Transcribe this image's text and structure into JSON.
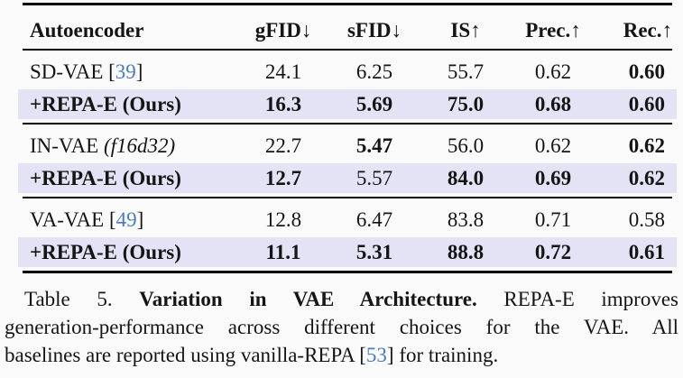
{
  "page": {
    "background": "#fafafa",
    "text_color": "#151515",
    "highlight_color": "#e4e3f5",
    "citation_color": "#4a7cba"
  },
  "table": {
    "columns": [
      "Autoencoder",
      "gFID↓",
      "sFID↓",
      "IS↑",
      "Prec.↑",
      "Rec.↑"
    ],
    "sections": [
      {
        "rows": [
          {
            "highlight": false,
            "label_bold": false,
            "label_parts": [
              {
                "t": "SD-VAE [",
                "s": "plain"
              },
              {
                "t": "39",
                "s": "cite"
              },
              {
                "t": "]",
                "s": "plain"
              }
            ],
            "cells": [
              {
                "v": "24.1",
                "b": false
              },
              {
                "v": "6.25",
                "b": false
              },
              {
                "v": "55.7",
                "b": false
              },
              {
                "v": "0.62",
                "b": false
              },
              {
                "v": "0.60",
                "b": true
              }
            ]
          },
          {
            "highlight": true,
            "label_bold": true,
            "label_parts": [
              {
                "t": "+REPA-E (Ours)",
                "s": "plain"
              }
            ],
            "cells": [
              {
                "v": "16.3",
                "b": true
              },
              {
                "v": "5.69",
                "b": true
              },
              {
                "v": "75.0",
                "b": true
              },
              {
                "v": "0.68",
                "b": true
              },
              {
                "v": "0.60",
                "b": true
              }
            ]
          }
        ]
      },
      {
        "rows": [
          {
            "highlight": false,
            "label_bold": false,
            "label_parts": [
              {
                "t": "IN-VAE ",
                "s": "plain"
              },
              {
                "t": "(f16d32)",
                "s": "italic"
              }
            ],
            "cells": [
              {
                "v": "22.7",
                "b": false
              },
              {
                "v": "5.47",
                "b": true
              },
              {
                "v": "56.0",
                "b": false
              },
              {
                "v": "0.62",
                "b": false
              },
              {
                "v": "0.62",
                "b": true
              }
            ]
          },
          {
            "highlight": true,
            "label_bold": true,
            "label_parts": [
              {
                "t": "+REPA-E (Ours)",
                "s": "plain"
              }
            ],
            "cells": [
              {
                "v": "12.7",
                "b": true
              },
              {
                "v": "5.57",
                "b": false
              },
              {
                "v": "84.0",
                "b": true
              },
              {
                "v": "0.69",
                "b": true
              },
              {
                "v": "0.62",
                "b": true
              }
            ]
          }
        ]
      },
      {
        "rows": [
          {
            "highlight": false,
            "label_bold": false,
            "label_parts": [
              {
                "t": "VA-VAE [",
                "s": "plain"
              },
              {
                "t": "49",
                "s": "cite"
              },
              {
                "t": "]",
                "s": "plain"
              }
            ],
            "cells": [
              {
                "v": "12.8",
                "b": false
              },
              {
                "v": "6.47",
                "b": false
              },
              {
                "v": "83.8",
                "b": false
              },
              {
                "v": "0.71",
                "b": false
              },
              {
                "v": "0.58",
                "b": false
              }
            ]
          },
          {
            "highlight": true,
            "label_bold": true,
            "label_parts": [
              {
                "t": "+REPA-E (Ours)",
                "s": "plain"
              }
            ],
            "cells": [
              {
                "v": "11.1",
                "b": true
              },
              {
                "v": "5.31",
                "b": true
              },
              {
                "v": "88.8",
                "b": true
              },
              {
                "v": "0.72",
                "b": true
              },
              {
                "v": "0.61",
                "b": true
              }
            ]
          }
        ]
      }
    ]
  },
  "caption": {
    "lines": [
      {
        "justify": true,
        "indent": true,
        "parts": [
          {
            "t": "Table 5.  ",
            "s": "plain"
          },
          {
            "t": "Variation in VAE Architecture.  ",
            "s": "bold"
          },
          {
            "t": "REPA-E improves",
            "s": "plain"
          }
        ]
      },
      {
        "justify": true,
        "indent": false,
        "parts": [
          {
            "t": "generation-performance across different choices for the VAE. All",
            "s": "plain"
          }
        ]
      },
      {
        "justify": false,
        "indent": false,
        "parts": [
          {
            "t": "baselines are reported using vanilla-REPA [",
            "s": "plain"
          },
          {
            "t": "53",
            "s": "cite"
          },
          {
            "t": "] for training.",
            "s": "plain"
          }
        ]
      }
    ]
  }
}
